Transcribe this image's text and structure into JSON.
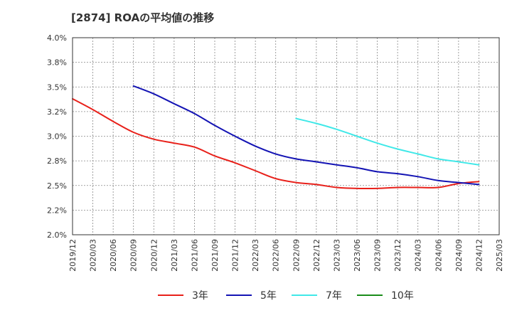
{
  "chart_data": {
    "type": "line",
    "title": "[2874]  ROAの平均値の推移",
    "xlabel": "",
    "ylabel": "",
    "ylim": [
      2.0,
      4.0
    ],
    "y_ticks": [
      "2.0%",
      "2.2%",
      "2.5%",
      "2.8%",
      "3.0%",
      "3.2%",
      "3.5%",
      "3.8%",
      "4.0%"
    ],
    "x_ticks": [
      "2019/12",
      "2020/03",
      "2020/06",
      "2020/09",
      "2020/12",
      "2021/03",
      "2021/06",
      "2021/09",
      "2021/12",
      "2022/03",
      "2022/06",
      "2022/09",
      "2022/12",
      "2023/03",
      "2023/06",
      "2023/09",
      "2023/12",
      "2024/03",
      "2024/06",
      "2024/09",
      "2024/12",
      "2025/03"
    ],
    "grid": true,
    "legend_position": "bottom",
    "series": [
      {
        "name": "3年",
        "color": "#e8201a",
        "points": [
          [
            "2019/12",
            3.38
          ],
          [
            "2020/03",
            3.27
          ],
          [
            "2020/06",
            3.15
          ],
          [
            "2020/09",
            3.04
          ],
          [
            "2020/12",
            2.97
          ],
          [
            "2021/03",
            2.93
          ],
          [
            "2021/06",
            2.89
          ],
          [
            "2021/09",
            2.8
          ],
          [
            "2021/12",
            2.73
          ],
          [
            "2022/03",
            2.65
          ],
          [
            "2022/06",
            2.57
          ],
          [
            "2022/09",
            2.53
          ],
          [
            "2022/12",
            2.51
          ],
          [
            "2023/03",
            2.48
          ],
          [
            "2023/06",
            2.47
          ],
          [
            "2023/09",
            2.47
          ],
          [
            "2023/12",
            2.48
          ],
          [
            "2024/03",
            2.48
          ],
          [
            "2024/06",
            2.48
          ],
          [
            "2024/09",
            2.52
          ],
          [
            "2024/12",
            2.54
          ]
        ]
      },
      {
        "name": "5年",
        "color": "#1414b4",
        "points": [
          [
            "2020/09",
            3.51
          ],
          [
            "2020/12",
            3.43
          ],
          [
            "2021/03",
            3.33
          ],
          [
            "2021/06",
            3.23
          ],
          [
            "2021/09",
            3.11
          ],
          [
            "2021/12",
            3.0
          ],
          [
            "2022/03",
            2.9
          ],
          [
            "2022/06",
            2.82
          ],
          [
            "2022/09",
            2.77
          ],
          [
            "2022/12",
            2.74
          ],
          [
            "2023/03",
            2.71
          ],
          [
            "2023/06",
            2.68
          ],
          [
            "2023/09",
            2.64
          ],
          [
            "2023/12",
            2.62
          ],
          [
            "2024/03",
            2.59
          ],
          [
            "2024/06",
            2.55
          ],
          [
            "2024/09",
            2.53
          ],
          [
            "2024/12",
            2.51
          ]
        ]
      },
      {
        "name": "7年",
        "color": "#40e8e8",
        "points": [
          [
            "2022/09",
            3.18
          ],
          [
            "2022/12",
            3.13
          ],
          [
            "2023/03",
            3.07
          ],
          [
            "2023/06",
            3.0
          ],
          [
            "2023/09",
            2.93
          ],
          [
            "2023/12",
            2.87
          ],
          [
            "2024/03",
            2.82
          ],
          [
            "2024/06",
            2.77
          ],
          [
            "2024/09",
            2.74
          ],
          [
            "2024/12",
            2.71
          ]
        ]
      },
      {
        "name": "10年",
        "color": "#1a8c1a",
        "points": []
      }
    ]
  }
}
